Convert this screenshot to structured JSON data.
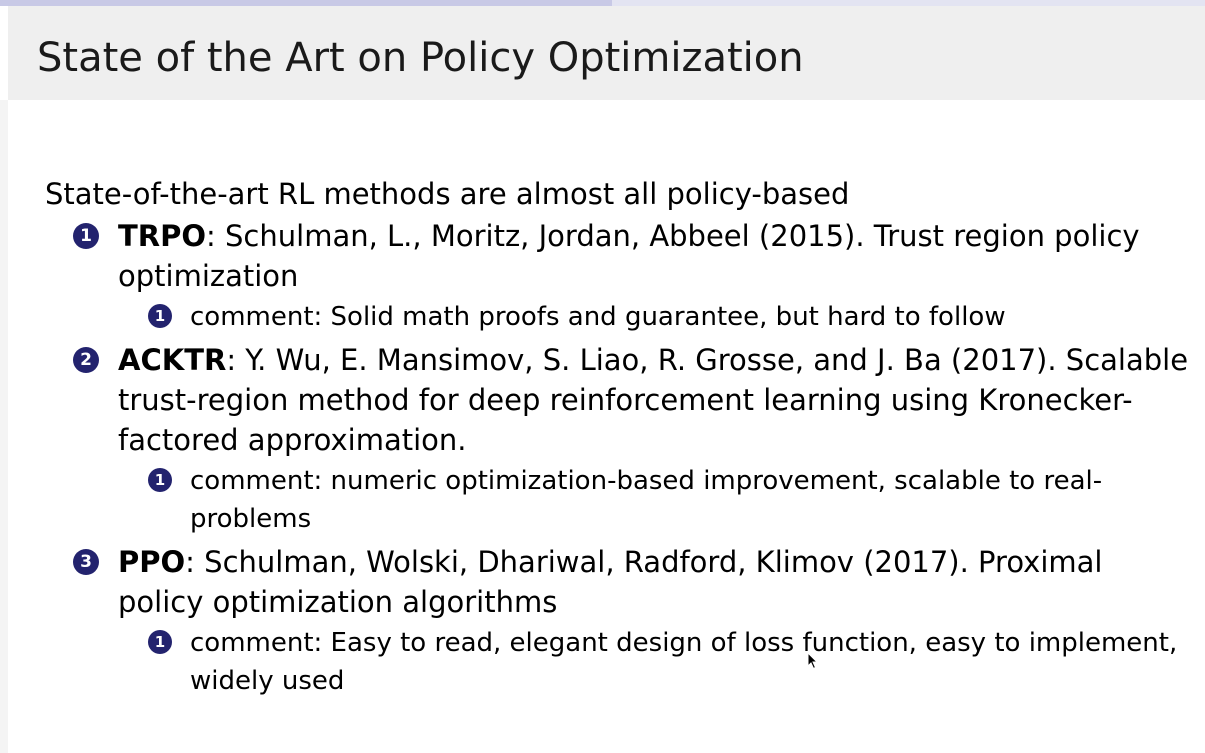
{
  "progress": {
    "fraction": 0.508
  },
  "slide": {
    "title": "State of the Art on Policy Optimization",
    "intro": "State-of-the-art RL methods are almost all policy-based",
    "items": [
      {
        "number": "1",
        "method": "TRPO",
        "citation": ": Schulman, L., Moritz, Jordan, Abbeel (2015).  Trust region policy optimization",
        "comment_number": "1",
        "comment": "comment: Solid math proofs and guarantee, but hard to follow"
      },
      {
        "number": "2",
        "method": "ACKTR",
        "citation": ": Y. Wu, E. Mansimov, S. Liao, R. Grosse, and J. Ba (2017). Scalable trust-region method for deep reinforcement learning using Kronecker-factored approximation.",
        "comment_number": "1",
        "comment": "comment: numeric optimization-based improvement, scalable to real-problems"
      },
      {
        "number": "3",
        "method": "PPO",
        "citation": ": Schulman, Wolski, Dhariwal, Radford, Klimov (2017). Proximal policy optimization algorithms",
        "comment_number": "1",
        "comment": "comment: Easy to read, elegant design of loss function, easy to implement, widely used"
      }
    ]
  },
  "colors": {
    "badge": "#23236e",
    "title_bar": "#efefef",
    "progress_track": "#e3e4f2",
    "progress_fill": "#c8c9e6"
  }
}
